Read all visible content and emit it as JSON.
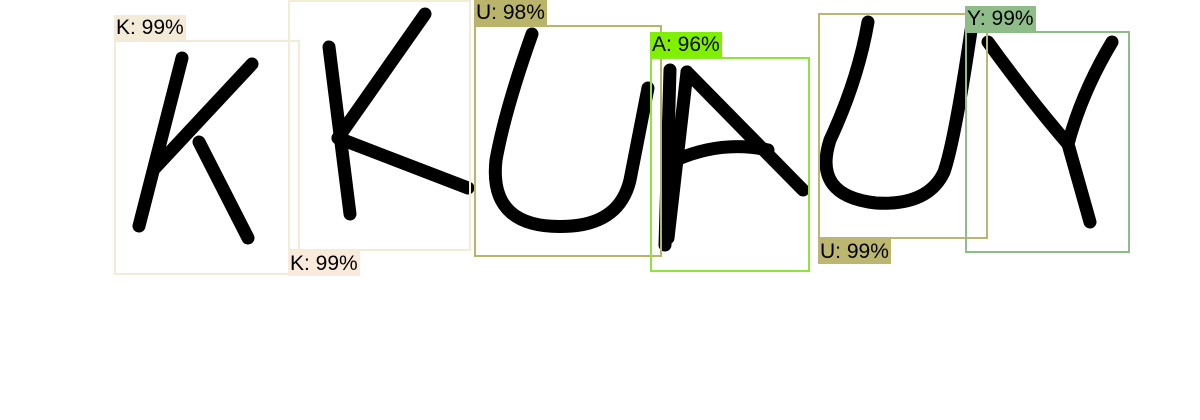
{
  "detections": [
    {
      "label": "K: 99%",
      "color": "#f4ead8",
      "label_bg": "#f4ead8"
    },
    {
      "label": "K: 99%",
      "color": "#f3edd6",
      "label_bg": "#faeadb"
    },
    {
      "label": "U: 98%",
      "color": "#bab46a",
      "label_bg": "#bab46a"
    },
    {
      "label": "A: 96%",
      "color": "#8ee43c",
      "label_bg": "#7ff000"
    },
    {
      "label": "U: 99%",
      "color": "#bcb670",
      "label_bg": "#bcb670"
    },
    {
      "label": "Y: 99%",
      "color": "#8fbd8a",
      "label_bg": "#8fbd8a"
    }
  ]
}
